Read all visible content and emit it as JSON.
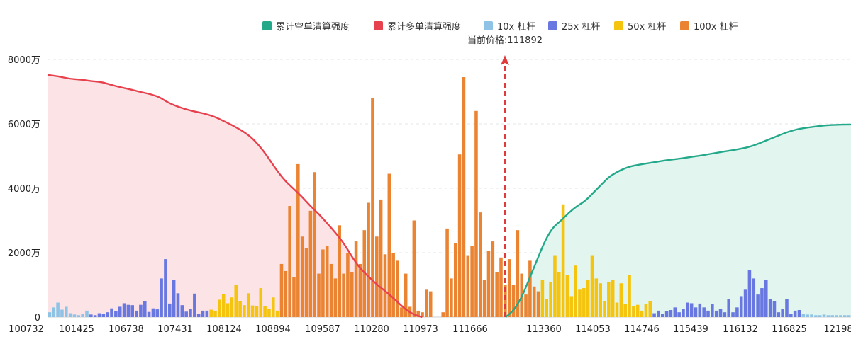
{
  "chart_data": {
    "type": "bar",
    "title": "",
    "legend_position": "top-right",
    "legend": [
      {
        "name": "累计空单清算强度",
        "color": "#23a98a",
        "kind": "line"
      },
      {
        "name": "累计多单清算强度",
        "color": "#e8414e",
        "kind": "line"
      },
      {
        "name": "10x 杠杆",
        "color": "#8ec3e6",
        "kind": "bar"
      },
      {
        "name": "25x 杠杆",
        "color": "#6878e0",
        "kind": "bar"
      },
      {
        "name": "50x 杠杆",
        "color": "#f5c40f",
        "kind": "bar"
      },
      {
        "name": "100x 杠杆",
        "color": "#ea8432",
        "kind": "bar"
      }
    ],
    "current_price_label": "当前价格:111892",
    "current_price": 111892,
    "y_ticks": [
      "0",
      "2000万",
      "4000万",
      "6000万",
      "8000万"
    ],
    "y_tick_values": [
      0,
      2000,
      4000,
      6000,
      8000
    ],
    "ylim": [
      0,
      8000
    ],
    "x_ticks": [
      "100732",
      "101425",
      "106738",
      "107431",
      "108124",
      "108894",
      "109587",
      "110280",
      "110973",
      "111666",
      "113360",
      "114053",
      "114746",
      "115439",
      "116132",
      "116825",
      "12198"
    ],
    "bar_count": 194,
    "bar_colors": {
      "10x": "#8ec3e6",
      "25x": "#6878e0",
      "50x": "#f5c40f",
      "100x": "#ea8432"
    },
    "bars": [
      {
        "i": 0,
        "t": "10x",
        "v": 150
      },
      {
        "i": 1,
        "t": "10x",
        "v": 300
      },
      {
        "i": 2,
        "t": "10x",
        "v": 450
      },
      {
        "i": 3,
        "t": "10x",
        "v": 230
      },
      {
        "i": 4,
        "t": "10x",
        "v": 320
      },
      {
        "i": 5,
        "t": "10x",
        "v": 120
      },
      {
        "i": 6,
        "t": "10x",
        "v": 80
      },
      {
        "i": 7,
        "t": "10x",
        "v": 60
      },
      {
        "i": 8,
        "t": "10x",
        "v": 100
      },
      {
        "i": 9,
        "t": "10x",
        "v": 200
      },
      {
        "i": 10,
        "t": "25x",
        "v": 80
      },
      {
        "i": 11,
        "t": "25x",
        "v": 60
      },
      {
        "i": 12,
        "t": "25x",
        "v": 120
      },
      {
        "i": 13,
        "t": "25x",
        "v": 90
      },
      {
        "i": 14,
        "t": "25x",
        "v": 150
      },
      {
        "i": 15,
        "t": "25x",
        "v": 270
      },
      {
        "i": 16,
        "t": "25x",
        "v": 180
      },
      {
        "i": 17,
        "t": "25x",
        "v": 320
      },
      {
        "i": 18,
        "t": "25x",
        "v": 430
      },
      {
        "i": 19,
        "t": "25x",
        "v": 380
      },
      {
        "i": 20,
        "t": "25x",
        "v": 370
      },
      {
        "i": 21,
        "t": "25x",
        "v": 200
      },
      {
        "i": 22,
        "t": "25x",
        "v": 380
      },
      {
        "i": 23,
        "t": "25x",
        "v": 490
      },
      {
        "i": 24,
        "t": "25x",
        "v": 160
      },
      {
        "i": 25,
        "t": "25x",
        "v": 270
      },
      {
        "i": 26,
        "t": "25x",
        "v": 240
      },
      {
        "i": 27,
        "t": "25x",
        "v": 1200
      },
      {
        "i": 28,
        "t": "25x",
        "v": 1800
      },
      {
        "i": 29,
        "t": "25x",
        "v": 420
      },
      {
        "i": 30,
        "t": "25x",
        "v": 1150
      },
      {
        "i": 31,
        "t": "25x",
        "v": 740
      },
      {
        "i": 32,
        "t": "25x",
        "v": 370
      },
      {
        "i": 33,
        "t": "25x",
        "v": 170
      },
      {
        "i": 34,
        "t": "25x",
        "v": 260
      },
      {
        "i": 35,
        "t": "25x",
        "v": 730
      },
      {
        "i": 36,
        "t": "25x",
        "v": 110
      },
      {
        "i": 37,
        "t": "25x",
        "v": 200
      },
      {
        "i": 38,
        "t": "25x",
        "v": 200
      },
      {
        "i": 39,
        "t": "50x",
        "v": 230
      },
      {
        "i": 40,
        "t": "50x",
        "v": 200
      },
      {
        "i": 41,
        "t": "50x",
        "v": 540
      },
      {
        "i": 42,
        "t": "50x",
        "v": 720
      },
      {
        "i": 43,
        "t": "50x",
        "v": 430
      },
      {
        "i": 44,
        "t": "50x",
        "v": 610
      },
      {
        "i": 45,
        "t": "50x",
        "v": 1000
      },
      {
        "i": 46,
        "t": "50x",
        "v": 500
      },
      {
        "i": 47,
        "t": "50x",
        "v": 370
      },
      {
        "i": 48,
        "t": "50x",
        "v": 740
      },
      {
        "i": 49,
        "t": "50x",
        "v": 360
      },
      {
        "i": 50,
        "t": "50x",
        "v": 330
      },
      {
        "i": 51,
        "t": "50x",
        "v": 900
      },
      {
        "i": 52,
        "t": "50x",
        "v": 330
      },
      {
        "i": 53,
        "t": "50x",
        "v": 260
      },
      {
        "i": 54,
        "t": "50x",
        "v": 610
      },
      {
        "i": 55,
        "t": "50x",
        "v": 200
      },
      {
        "i": 56,
        "t": "100x",
        "v": 1650
      },
      {
        "i": 57,
        "t": "100x",
        "v": 1430
      },
      {
        "i": 58,
        "t": "100x",
        "v": 3450
      },
      {
        "i": 59,
        "t": "100x",
        "v": 1250
      },
      {
        "i": 60,
        "t": "100x",
        "v": 4750
      },
      {
        "i": 61,
        "t": "100x",
        "v": 2500
      },
      {
        "i": 62,
        "t": "100x",
        "v": 2150
      },
      {
        "i": 63,
        "t": "100x",
        "v": 3300
      },
      {
        "i": 64,
        "t": "100x",
        "v": 4500
      },
      {
        "i": 65,
        "t": "100x",
        "v": 1350
      },
      {
        "i": 66,
        "t": "100x",
        "v": 2100
      },
      {
        "i": 67,
        "t": "100x",
        "v": 2200
      },
      {
        "i": 68,
        "t": "100x",
        "v": 1650
      },
      {
        "i": 69,
        "t": "100x",
        "v": 1200
      },
      {
        "i": 70,
        "t": "100x",
        "v": 2850
      },
      {
        "i": 71,
        "t": "100x",
        "v": 1350
      },
      {
        "i": 72,
        "t": "100x",
        "v": 2000
      },
      {
        "i": 73,
        "t": "100x",
        "v": 1400
      },
      {
        "i": 74,
        "t": "100x",
        "v": 2350
      },
      {
        "i": 75,
        "t": "100x",
        "v": 1650
      },
      {
        "i": 76,
        "t": "100x",
        "v": 2700
      },
      {
        "i": 77,
        "t": "100x",
        "v": 3550
      },
      {
        "i": 78,
        "t": "100x",
        "v": 6800
      },
      {
        "i": 79,
        "t": "100x",
        "v": 2500
      },
      {
        "i": 80,
        "t": "100x",
        "v": 3650
      },
      {
        "i": 81,
        "t": "100x",
        "v": 1950
      },
      {
        "i": 82,
        "t": "100x",
        "v": 4450
      },
      {
        "i": 83,
        "t": "100x",
        "v": 2000
      },
      {
        "i": 84,
        "t": "100x",
        "v": 1750
      },
      {
        "i": 85,
        "t": "100x",
        "v": 300
      },
      {
        "i": 86,
        "t": "100x",
        "v": 1350
      },
      {
        "i": 87,
        "t": "100x",
        "v": 320
      },
      {
        "i": 88,
        "t": "100x",
        "v": 3000
      },
      {
        "i": 89,
        "t": "100x",
        "v": 200
      },
      {
        "i": 90,
        "t": "100x",
        "v": 150
      },
      {
        "i": 91,
        "t": "100x",
        "v": 850
      },
      {
        "i": 92,
        "t": "100x",
        "v": 800
      },
      {
        "i": 95,
        "t": "100x",
        "v": 150
      },
      {
        "i": 96,
        "t": "100x",
        "v": 2750
      },
      {
        "i": 97,
        "t": "100x",
        "v": 1200
      },
      {
        "i": 98,
        "t": "100x",
        "v": 2300
      },
      {
        "i": 99,
        "t": "100x",
        "v": 5050
      },
      {
        "i": 100,
        "t": "100x",
        "v": 7450
      },
      {
        "i": 101,
        "t": "100x",
        "v": 1900
      },
      {
        "i": 102,
        "t": "100x",
        "v": 2200
      },
      {
        "i": 103,
        "t": "100x",
        "v": 6400
      },
      {
        "i": 104,
        "t": "100x",
        "v": 3250
      },
      {
        "i": 105,
        "t": "100x",
        "v": 1150
      },
      {
        "i": 106,
        "t": "100x",
        "v": 2050
      },
      {
        "i": 107,
        "t": "100x",
        "v": 2350
      },
      {
        "i": 108,
        "t": "100x",
        "v": 1400
      },
      {
        "i": 109,
        "t": "100x",
        "v": 1850
      },
      {
        "i": 110,
        "t": "100x",
        "v": 1000
      },
      {
        "i": 111,
        "t": "100x",
        "v": 1800
      },
      {
        "i": 112,
        "t": "100x",
        "v": 1000
      },
      {
        "i": 113,
        "t": "100x",
        "v": 2700
      },
      {
        "i": 114,
        "t": "100x",
        "v": 1350
      },
      {
        "i": 115,
        "t": "100x",
        "v": 700
      },
      {
        "i": 116,
        "t": "100x",
        "v": 1750
      },
      {
        "i": 117,
        "t": "100x",
        "v": 950
      },
      {
        "i": 118,
        "t": "100x",
        "v": 800
      },
      {
        "i": 119,
        "t": "50x",
        "v": 1150
      },
      {
        "i": 120,
        "t": "50x",
        "v": 550
      },
      {
        "i": 121,
        "t": "50x",
        "v": 1100
      },
      {
        "i": 122,
        "t": "50x",
        "v": 1900
      },
      {
        "i": 123,
        "t": "50x",
        "v": 1400
      },
      {
        "i": 124,
        "t": "50x",
        "v": 3500
      },
      {
        "i": 125,
        "t": "50x",
        "v": 1300
      },
      {
        "i": 126,
        "t": "50x",
        "v": 650
      },
      {
        "i": 127,
        "t": "50x",
        "v": 1600
      },
      {
        "i": 128,
        "t": "50x",
        "v": 850
      },
      {
        "i": 129,
        "t": "50x",
        "v": 900
      },
      {
        "i": 130,
        "t": "50x",
        "v": 1150
      },
      {
        "i": 131,
        "t": "50x",
        "v": 1900
      },
      {
        "i": 132,
        "t": "50x",
        "v": 1200
      },
      {
        "i": 133,
        "t": "50x",
        "v": 1050
      },
      {
        "i": 134,
        "t": "50x",
        "v": 500
      },
      {
        "i": 135,
        "t": "50x",
        "v": 1100
      },
      {
        "i": 136,
        "t": "50x",
        "v": 1150
      },
      {
        "i": 137,
        "t": "50x",
        "v": 450
      },
      {
        "i": 138,
        "t": "50x",
        "v": 1050
      },
      {
        "i": 139,
        "t": "50x",
        "v": 400
      },
      {
        "i": 140,
        "t": "50x",
        "v": 1300
      },
      {
        "i": 141,
        "t": "50x",
        "v": 350
      },
      {
        "i": 142,
        "t": "50x",
        "v": 380
      },
      {
        "i": 143,
        "t": "50x",
        "v": 200
      },
      {
        "i": 144,
        "t": "50x",
        "v": 400
      },
      {
        "i": 145,
        "t": "50x",
        "v": 500
      },
      {
        "i": 146,
        "t": "25x",
        "v": 120
      },
      {
        "i": 147,
        "t": "25x",
        "v": 200
      },
      {
        "i": 148,
        "t": "25x",
        "v": 100
      },
      {
        "i": 149,
        "t": "25x",
        "v": 180
      },
      {
        "i": 150,
        "t": "25x",
        "v": 220
      },
      {
        "i": 151,
        "t": "25x",
        "v": 300
      },
      {
        "i": 152,
        "t": "25x",
        "v": 150
      },
      {
        "i": 153,
        "t": "25x",
        "v": 250
      },
      {
        "i": 154,
        "t": "25x",
        "v": 450
      },
      {
        "i": 155,
        "t": "25x",
        "v": 430
      },
      {
        "i": 156,
        "t": "25x",
        "v": 300
      },
      {
        "i": 157,
        "t": "25x",
        "v": 420
      },
      {
        "i": 158,
        "t": "25x",
        "v": 300
      },
      {
        "i": 159,
        "t": "25x",
        "v": 200
      },
      {
        "i": 160,
        "t": "25x",
        "v": 400
      },
      {
        "i": 161,
        "t": "25x",
        "v": 200
      },
      {
        "i": 162,
        "t": "25x",
        "v": 250
      },
      {
        "i": 163,
        "t": "25x",
        "v": 150
      },
      {
        "i": 164,
        "t": "25x",
        "v": 550
      },
      {
        "i": 165,
        "t": "25x",
        "v": 150
      },
      {
        "i": 166,
        "t": "25x",
        "v": 300
      },
      {
        "i": 167,
        "t": "25x",
        "v": 650
      },
      {
        "i": 168,
        "t": "25x",
        "v": 850
      },
      {
        "i": 169,
        "t": "25x",
        "v": 1450
      },
      {
        "i": 170,
        "t": "25x",
        "v": 1200
      },
      {
        "i": 171,
        "t": "25x",
        "v": 700
      },
      {
        "i": 172,
        "t": "25x",
        "v": 900
      },
      {
        "i": 173,
        "t": "25x",
        "v": 1150
      },
      {
        "i": 174,
        "t": "25x",
        "v": 550
      },
      {
        "i": 175,
        "t": "25x",
        "v": 500
      },
      {
        "i": 176,
        "t": "25x",
        "v": 150
      },
      {
        "i": 177,
        "t": "25x",
        "v": 250
      },
      {
        "i": 178,
        "t": "25x",
        "v": 550
      },
      {
        "i": 179,
        "t": "25x",
        "v": 100
      },
      {
        "i": 180,
        "t": "25x",
        "v": 200
      },
      {
        "i": 181,
        "t": "25x",
        "v": 220
      },
      {
        "i": 182,
        "t": "10x",
        "v": 100
      },
      {
        "i": 183,
        "t": "10x",
        "v": 80
      },
      {
        "i": 184,
        "t": "10x",
        "v": 80
      },
      {
        "i": 185,
        "t": "10x",
        "v": 60
      },
      {
        "i": 186,
        "t": "10x",
        "v": 60
      },
      {
        "i": 187,
        "t": "10x",
        "v": 80
      },
      {
        "i": 188,
        "t": "10x",
        "v": 60
      },
      {
        "i": 189,
        "t": "10x",
        "v": 60
      },
      {
        "i": 190,
        "t": "10x",
        "v": 60
      },
      {
        "i": 191,
        "t": "10x",
        "v": 60
      },
      {
        "i": 192,
        "t": "10x",
        "v": 60
      },
      {
        "i": 193,
        "t": "10x",
        "v": 60
      }
    ],
    "long_curve": {
      "name": "累计多单清算强度",
      "color": "#e8414e",
      "fill": "#fbe3e6",
      "points": [
        [
          0,
          7520
        ],
        [
          5,
          7480
        ],
        [
          10,
          7400
        ],
        [
          15,
          7380
        ],
        [
          20,
          7330
        ],
        [
          25,
          7300
        ],
        [
          28,
          7240
        ],
        [
          33,
          7150
        ],
        [
          38,
          7080
        ],
        [
          43,
          6990
        ],
        [
          48,
          6920
        ],
        [
          52,
          6830
        ],
        [
          55,
          6700
        ],
        [
          58,
          6600
        ],
        [
          62,
          6500
        ],
        [
          66,
          6420
        ],
        [
          70,
          6360
        ],
        [
          74,
          6300
        ],
        [
          78,
          6210
        ],
        [
          82,
          6080
        ],
        [
          86,
          5950
        ],
        [
          90,
          5800
        ],
        [
          94,
          5620
        ],
        [
          98,
          5350
        ],
        [
          102,
          5000
        ],
        [
          106,
          4600
        ],
        [
          110,
          4250
        ],
        [
          114,
          4000
        ],
        [
          118,
          3750
        ],
        [
          122,
          3450
        ],
        [
          126,
          3200
        ],
        [
          130,
          2900
        ],
        [
          134,
          2600
        ],
        [
          138,
          2250
        ],
        [
          142,
          1800
        ],
        [
          146,
          1450
        ],
        [
          150,
          1200
        ],
        [
          154,
          950
        ],
        [
          158,
          750
        ],
        [
          162,
          500
        ],
        [
          166,
          250
        ],
        [
          170,
          80
        ],
        [
          174,
          0
        ]
      ]
    },
    "short_curve": {
      "name": "累计空单清算强度",
      "color": "#23a98a",
      "fill": "#e3f5ef",
      "points": [
        [
          0,
          0
        ],
        [
          4,
          200
        ],
        [
          8,
          600
        ],
        [
          12,
          1200
        ],
        [
          16,
          1800
        ],
        [
          20,
          2400
        ],
        [
          24,
          2800
        ],
        [
          28,
          3000
        ],
        [
          32,
          3250
        ],
        [
          36,
          3450
        ],
        [
          40,
          3600
        ],
        [
          44,
          3850
        ],
        [
          48,
          4100
        ],
        [
          52,
          4350
        ],
        [
          56,
          4500
        ],
        [
          60,
          4620
        ],
        [
          64,
          4700
        ],
        [
          70,
          4760
        ],
        [
          76,
          4820
        ],
        [
          82,
          4880
        ],
        [
          88,
          4920
        ],
        [
          94,
          4980
        ],
        [
          100,
          5030
        ],
        [
          106,
          5100
        ],
        [
          112,
          5160
        ],
        [
          118,
          5220
        ],
        [
          124,
          5300
        ],
        [
          130,
          5450
        ],
        [
          136,
          5600
        ],
        [
          142,
          5750
        ],
        [
          148,
          5850
        ],
        [
          154,
          5900
        ],
        [
          160,
          5950
        ],
        [
          166,
          5970
        ],
        [
          174,
          5980
        ]
      ]
    }
  }
}
